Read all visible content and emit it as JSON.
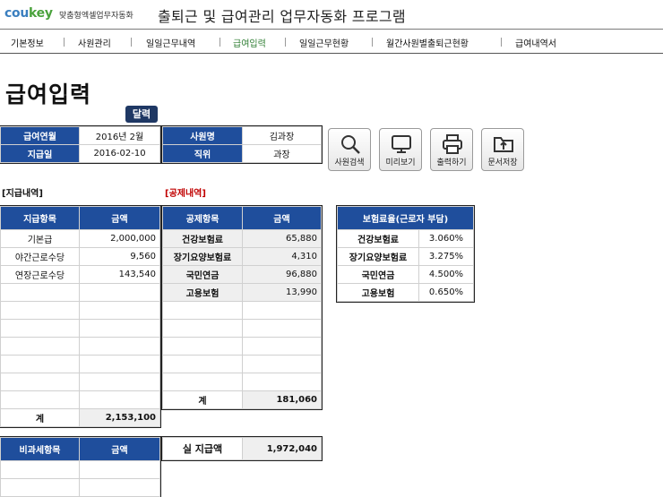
{
  "app": {
    "logo_text_a": "cou",
    "logo_text_b": "key",
    "logo_sub": "맞춤형엑셀업무자동화",
    "title": "출퇴근 및 급여관리 업무자동화 프로그램"
  },
  "nav": {
    "items": [
      "기본정보",
      "사원관리",
      "일일근무내역",
      "급여입력",
      "일일근무현황",
      "월간사원별출퇴근현황",
      "급여내역서"
    ],
    "active": "급여입력"
  },
  "page": {
    "title": "급여입력",
    "calendar_button": "달력"
  },
  "info": {
    "pay_month_label": "급여연월",
    "pay_month_value": "2016년 2월",
    "pay_date_label": "지급일",
    "pay_date_value": "2016-02-10",
    "employee_label": "사원명",
    "employee_value": "김과장",
    "position_label": "직위",
    "position_value": "과장"
  },
  "toolbar": {
    "search_label": "사원검색",
    "preview_label": "미리보기",
    "print_label": "출력하기",
    "save_label": "문서저장"
  },
  "payments": {
    "section_label": "[지급내역]",
    "col_item": "지급항목",
    "col_amount": "금액",
    "rows": [
      {
        "item": "기본급",
        "amount": "2,000,000"
      },
      {
        "item": "야간근로수당",
        "amount": "9,560"
      },
      {
        "item": "연장근로수당",
        "amount": "143,540"
      }
    ],
    "total_label": "계",
    "total_value": "2,153,100"
  },
  "deductions": {
    "section_label": "[공제내역]",
    "col_item": "공제항목",
    "col_amount": "금액",
    "rows": [
      {
        "item": "건강보험료",
        "amount": "65,880"
      },
      {
        "item": "장기요양보험료",
        "amount": "4,310"
      },
      {
        "item": "국민연금",
        "amount": "96,880"
      },
      {
        "item": "고용보험",
        "amount": "13,990"
      }
    ],
    "total_label": "계",
    "total_value": "181,060"
  },
  "insurance": {
    "header": "보험료율(근로자 부담)",
    "rows": [
      {
        "item": "건강보험료",
        "rate": "3.060%"
      },
      {
        "item": "장기요양보험료",
        "rate": "3.275%"
      },
      {
        "item": "국민연금",
        "rate": "4.500%"
      },
      {
        "item": "고용보험",
        "rate": "0.650%"
      }
    ]
  },
  "nontax": {
    "col_item": "비과세항목",
    "col_amount": "금액"
  },
  "net": {
    "label": "실 지급액",
    "value": "1,972,040"
  }
}
